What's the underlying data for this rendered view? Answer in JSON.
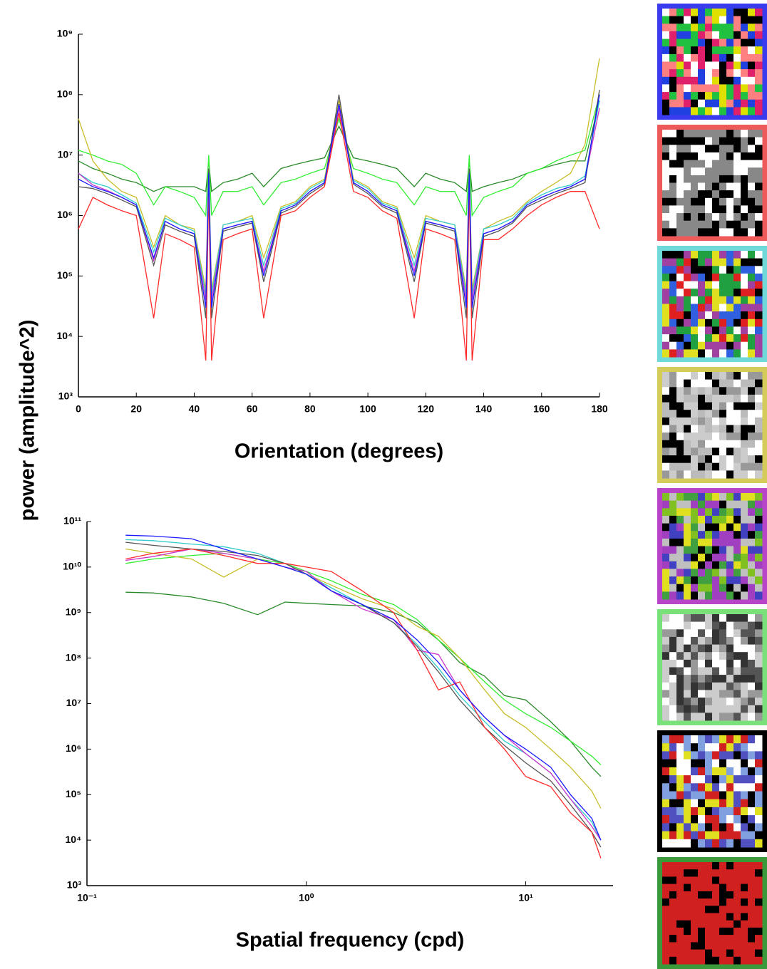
{
  "ylabel": "power (amplitude^2)",
  "chart_data": [
    {
      "type": "line",
      "xlabel": "Orientation (degrees)",
      "xscale": "linear",
      "yscale": "log",
      "xlim": [
        0,
        180
      ],
      "xticks": [
        0,
        20,
        40,
        60,
        80,
        100,
        120,
        140,
        160,
        180
      ],
      "ylim": [
        1000,
        1000000000
      ],
      "yticks": [
        {
          "value": 1000,
          "label": "10³"
        },
        {
          "value": 10000,
          "label": "10⁴"
        },
        {
          "value": 100000,
          "label": "10⁵"
        },
        {
          "value": 1000000,
          "label": "10⁶"
        },
        {
          "value": 10000000,
          "label": "10⁷"
        },
        {
          "value": 100000000,
          "label": "10⁸"
        },
        {
          "value": 1000000000,
          "label": "10⁹"
        }
      ],
      "x": [
        0,
        5,
        10,
        15,
        20,
        26,
        30,
        35,
        40,
        44,
        45,
        46,
        50,
        55,
        60,
        64,
        70,
        75,
        80,
        85,
        90,
        95,
        100,
        105,
        110,
        116,
        120,
        125,
        130,
        134,
        135,
        136,
        140,
        145,
        150,
        155,
        160,
        165,
        170,
        175,
        180
      ],
      "series": [
        {
          "color": "#2a8a2a",
          "values": [
            8000000.0,
            6000000.0,
            5000000.0,
            4000000.0,
            3500000.0,
            2500000.0,
            3000000.0,
            3000000.0,
            3000000.0,
            2500000.0,
            8000000.0,
            2500000.0,
            3500000.0,
            4000000.0,
            5000000.0,
            3000000.0,
            6000000.0,
            7000000.0,
            8000000.0,
            9000000.0,
            30000000.0,
            9000000.0,
            8000000.0,
            7000000.0,
            6000000.0,
            3000000.0,
            5000000.0,
            4000000.0,
            3500000.0,
            2500000.0,
            8000000.0,
            2500000.0,
            3000000.0,
            3500000.0,
            4000000.0,
            5000000.0,
            6000000.0,
            7000000.0,
            8000000.0,
            8000000.0,
            80000000.0
          ]
        },
        {
          "color": "#33ee33",
          "values": [
            12000000.0,
            10000000.0,
            8000000.0,
            7000000.0,
            5000000.0,
            1500000.0,
            3000000.0,
            2500000.0,
            2000000.0,
            1000000.0,
            10000000.0,
            1000000.0,
            2500000.0,
            2500000.0,
            3000000.0,
            1500000.0,
            3500000.0,
            4000000.0,
            5000000.0,
            6000000.0,
            40000000.0,
            6000000.0,
            5000000.0,
            4000000.0,
            3500000.0,
            1500000.0,
            3000000.0,
            2500000.0,
            2500000.0,
            1000000.0,
            10000000.0,
            1000000.0,
            2000000.0,
            2500000.0,
            3000000.0,
            5000000.0,
            6000000.0,
            8000000.0,
            10000000.0,
            12000000.0,
            100000000.0
          ]
        },
        {
          "color": "#c8be2a",
          "values": [
            40000000.0,
            8000000.0,
            4000000.0,
            2500000.0,
            2000000.0,
            300000.0,
            1000000.0,
            700000.0,
            600000.0,
            60000.0,
            6000000.0,
            60000.0,
            700000.0,
            800000.0,
            1000000.0,
            200000.0,
            1400000.0,
            1700000.0,
            3000000.0,
            4000000.0,
            80000000.0,
            4000000.0,
            3000000.0,
            1700000.0,
            1400000.0,
            200000.0,
            1000000.0,
            800000.0,
            700000.0,
            60000.0,
            6000000.0,
            60000.0,
            600000.0,
            800000.0,
            1000000.0,
            1700000.0,
            2500000.0,
            3500000.0,
            5000000.0,
            15000000.0,
            400000000.0
          ]
        },
        {
          "color": "#33cccc",
          "values": [
            5000000.0,
            3500000.0,
            3000000.0,
            2200000.0,
            1600000.0,
            250000.0,
            900000.0,
            700000.0,
            550000.0,
            50000.0,
            6000000.0,
            50000.0,
            700000.0,
            800000.0,
            900000.0,
            150000.0,
            1300000.0,
            1600000.0,
            2800000.0,
            3800000.0,
            60000000.0,
            3800000.0,
            2800000.0,
            1600000.0,
            1300000.0,
            150000.0,
            900000.0,
            800000.0,
            700000.0,
            50000.0,
            6000000.0,
            50000.0,
            600000.0,
            700000.0,
            900000.0,
            1600000.0,
            2200000.0,
            2800000.0,
            3200000.0,
            4500000.0,
            80000000.0
          ]
        },
        {
          "color": "#cc33cc",
          "values": [
            5000000.0,
            3200000.0,
            2600000.0,
            2000000.0,
            1500000.0,
            180000.0,
            800000.0,
            600000.0,
            500000.0,
            40000.0,
            5000000.0,
            40000.0,
            600000.0,
            700000.0,
            800000.0,
            120000.0,
            1200000.0,
            1500000.0,
            2500000.0,
            3500000.0,
            60000000.0,
            3500000.0,
            2500000.0,
            1500000.0,
            1200000.0,
            120000.0,
            800000.0,
            700000.0,
            600000.0,
            40000.0,
            5000000.0,
            40000.0,
            500000.0,
            600000.0,
            800000.0,
            1500000.0,
            2000000.0,
            2500000.0,
            3000000.0,
            4000000.0,
            60000000.0
          ]
        },
        {
          "color": "#555555",
          "values": [
            3000000.0,
            2800000.0,
            2300000.0,
            1800000.0,
            1400000.0,
            150000.0,
            700000.0,
            550000.0,
            450000.0,
            20000.0,
            6000000.0,
            20000.0,
            550000.0,
            650000.0,
            750000.0,
            80000.0,
            1100000.0,
            1400000.0,
            2300000.0,
            3300000.0,
            100000000.0,
            3300000.0,
            2300000.0,
            1400000.0,
            1100000.0,
            80000.0,
            750000.0,
            650000.0,
            550000.0,
            20000.0,
            6000000.0,
            20000.0,
            450000.0,
            550000.0,
            750000.0,
            1400000.0,
            1800000.0,
            2300000.0,
            2800000.0,
            3500000.0,
            120000000.0
          ]
        },
        {
          "color": "#ff2a2a",
          "values": [
            600000.0,
            2000000.0,
            1500000.0,
            1200000.0,
            1000000.0,
            20000.0,
            500000.0,
            400000.0,
            300000.0,
            4000.0,
            3000000.0,
            4000.0,
            400000.0,
            500000.0,
            600000.0,
            20000.0,
            1000000.0,
            1200000.0,
            2000000.0,
            3000000.0,
            50000000.0,
            2500000.0,
            2000000.0,
            1200000.0,
            900000.0,
            20000.0,
            600000.0,
            500000.0,
            400000.0,
            4000.0,
            3000000.0,
            4000.0,
            400000.0,
            400000.0,
            600000.0,
            1000000.0,
            1500000.0,
            2000000.0,
            2500000.0,
            2500000.0,
            600000.0
          ]
        },
        {
          "color": "#1a1aff",
          "values": [
            4000000.0,
            3000000.0,
            2500000.0,
            2000000.0,
            1500000.0,
            200000.0,
            800000.0,
            600000.0,
            500000.0,
            30000.0,
            5000000.0,
            30000.0,
            600000.0,
            700000.0,
            800000.0,
            100000.0,
            1200000.0,
            1500000.0,
            2500000.0,
            3500000.0,
            70000000.0,
            3500000.0,
            2500000.0,
            1500000.0,
            1200000.0,
            100000.0,
            800000.0,
            700000.0,
            600000.0,
            30000.0,
            5000000.0,
            30000.0,
            500000.0,
            600000.0,
            800000.0,
            1500000.0,
            2000000.0,
            2500000.0,
            3000000.0,
            4000000.0,
            100000000.0
          ]
        }
      ]
    },
    {
      "type": "line",
      "xlabel": "Spatial frequency (cpd)",
      "xscale": "log",
      "yscale": "log",
      "xlim": [
        0.1,
        25
      ],
      "xticks": [
        {
          "value": 0.1,
          "label": "10⁻¹"
        },
        {
          "value": 1,
          "label": "10⁰"
        },
        {
          "value": 10,
          "label": "10¹"
        }
      ],
      "ylim": [
        1000,
        100000000000
      ],
      "yticks": [
        {
          "value": 1000,
          "label": "10³"
        },
        {
          "value": 10000,
          "label": "10⁴"
        },
        {
          "value": 100000,
          "label": "10⁵"
        },
        {
          "value": 1000000,
          "label": "10⁶"
        },
        {
          "value": 10000000,
          "label": "10⁷"
        },
        {
          "value": 100000000,
          "label": "10⁸"
        },
        {
          "value": 1000000000,
          "label": "10⁹"
        },
        {
          "value": 10000000000,
          "label": "10¹⁰"
        },
        {
          "value": 100000000000,
          "label": "10¹¹"
        }
      ],
      "x": [
        0.15,
        0.2,
        0.3,
        0.42,
        0.6,
        0.8,
        1,
        1.3,
        1.8,
        2.5,
        3.2,
        4,
        5,
        6.5,
        8,
        10,
        13,
        16,
        20,
        22
      ],
      "series": [
        {
          "color": "#2a8a2a",
          "values": [
            2800000000.0,
            2700000000.0,
            2200000000.0,
            1600000000.0,
            900000000.0,
            1700000000.0,
            1600000000.0,
            1500000000.0,
            1400000000.0,
            1000000000.0,
            600000000.0,
            250000000.0,
            80000000.0,
            40000000.0,
            15000000.0,
            12000000.0,
            4000000.0,
            1500000.0,
            400000.0,
            250000.0
          ]
        },
        {
          "color": "#33ee33",
          "values": [
            12000000000.0,
            15000000000.0,
            18000000000.0,
            20000000000.0,
            15000000000.0,
            12000000000.0,
            8000000000.0,
            5000000000.0,
            2500000000.0,
            1500000000.0,
            700000000.0,
            250000000.0,
            100000000.0,
            30000000.0,
            12000000.0,
            6000000.0,
            3000000.0,
            1500000.0,
            700000.0,
            450000.0
          ]
        },
        {
          "color": "#c8be2a",
          "values": [
            25000000000.0,
            20000000000.0,
            15000000000.0,
            6000000000.0,
            15000000000.0,
            10000000000.0,
            7000000000.0,
            4000000000.0,
            2000000000.0,
            1200000000.0,
            500000000.0,
            300000000.0,
            100000000.0,
            20000000.0,
            6000000.0,
            3000000.0,
            1000000.0,
            400000.0,
            120000.0,
            50000.0
          ]
        },
        {
          "color": "#33cccc",
          "values": [
            40000000000.0,
            38000000000.0,
            32000000000.0,
            28000000000.0,
            20000000000.0,
            12000000000.0,
            7000000000.0,
            3500000000.0,
            1500000000.0,
            600000000.0,
            200000000.0,
            60000000.0,
            15000000.0,
            4000000.0,
            1500000.0,
            800000.0,
            300000.0,
            80000.0,
            25000.0,
            10000.0
          ]
        },
        {
          "color": "#cc33cc",
          "values": [
            14000000000.0,
            17000000000.0,
            25000000000.0,
            20000000000.0,
            15000000000.0,
            10000000000.0,
            8000000000.0,
            3000000000.0,
            1200000000.0,
            700000000.0,
            150000000.0,
            120000000.0,
            20000000.0,
            5000000.0,
            2000000.0,
            800000.0,
            300000.0,
            80000.0,
            20000.0,
            10000.0
          ]
        },
        {
          "color": "#555555",
          "values": [
            35000000000.0,
            30000000000.0,
            25000000000.0,
            22000000000.0,
            18000000000.0,
            12000000000.0,
            7000000000.0,
            3000000000.0,
            1500000000.0,
            600000000.0,
            180000000.0,
            50000000.0,
            12000000.0,
            3000000.0,
            1200000.0,
            500000.0,
            200000.0,
            60000.0,
            15000.0,
            7000.0
          ]
        },
        {
          "color": "#ff2a2a",
          "values": [
            15000000000.0,
            20000000000.0,
            25000000000.0,
            18000000000.0,
            12000000000.0,
            12000000000.0,
            10000000000.0,
            8000000000.0,
            3000000000.0,
            1000000000.0,
            150000000.0,
            20000000.0,
            30000000.0,
            3000000.0,
            1000000.0,
            250000.0,
            150000.0,
            40000.0,
            15000.0,
            4000.0
          ]
        },
        {
          "color": "#1a1aff",
          "values": [
            50000000000.0,
            48000000000.0,
            42000000000.0,
            25000000000.0,
            15000000000.0,
            10000000000.0,
            7000000000.0,
            3000000000.0,
            1500000000.0,
            700000000.0,
            250000000.0,
            80000000.0,
            20000000.0,
            5000000.0,
            2000000.0,
            1000000.0,
            400000.0,
            100000.0,
            30000.0,
            10000.0
          ]
        }
      ]
    }
  ]
}
